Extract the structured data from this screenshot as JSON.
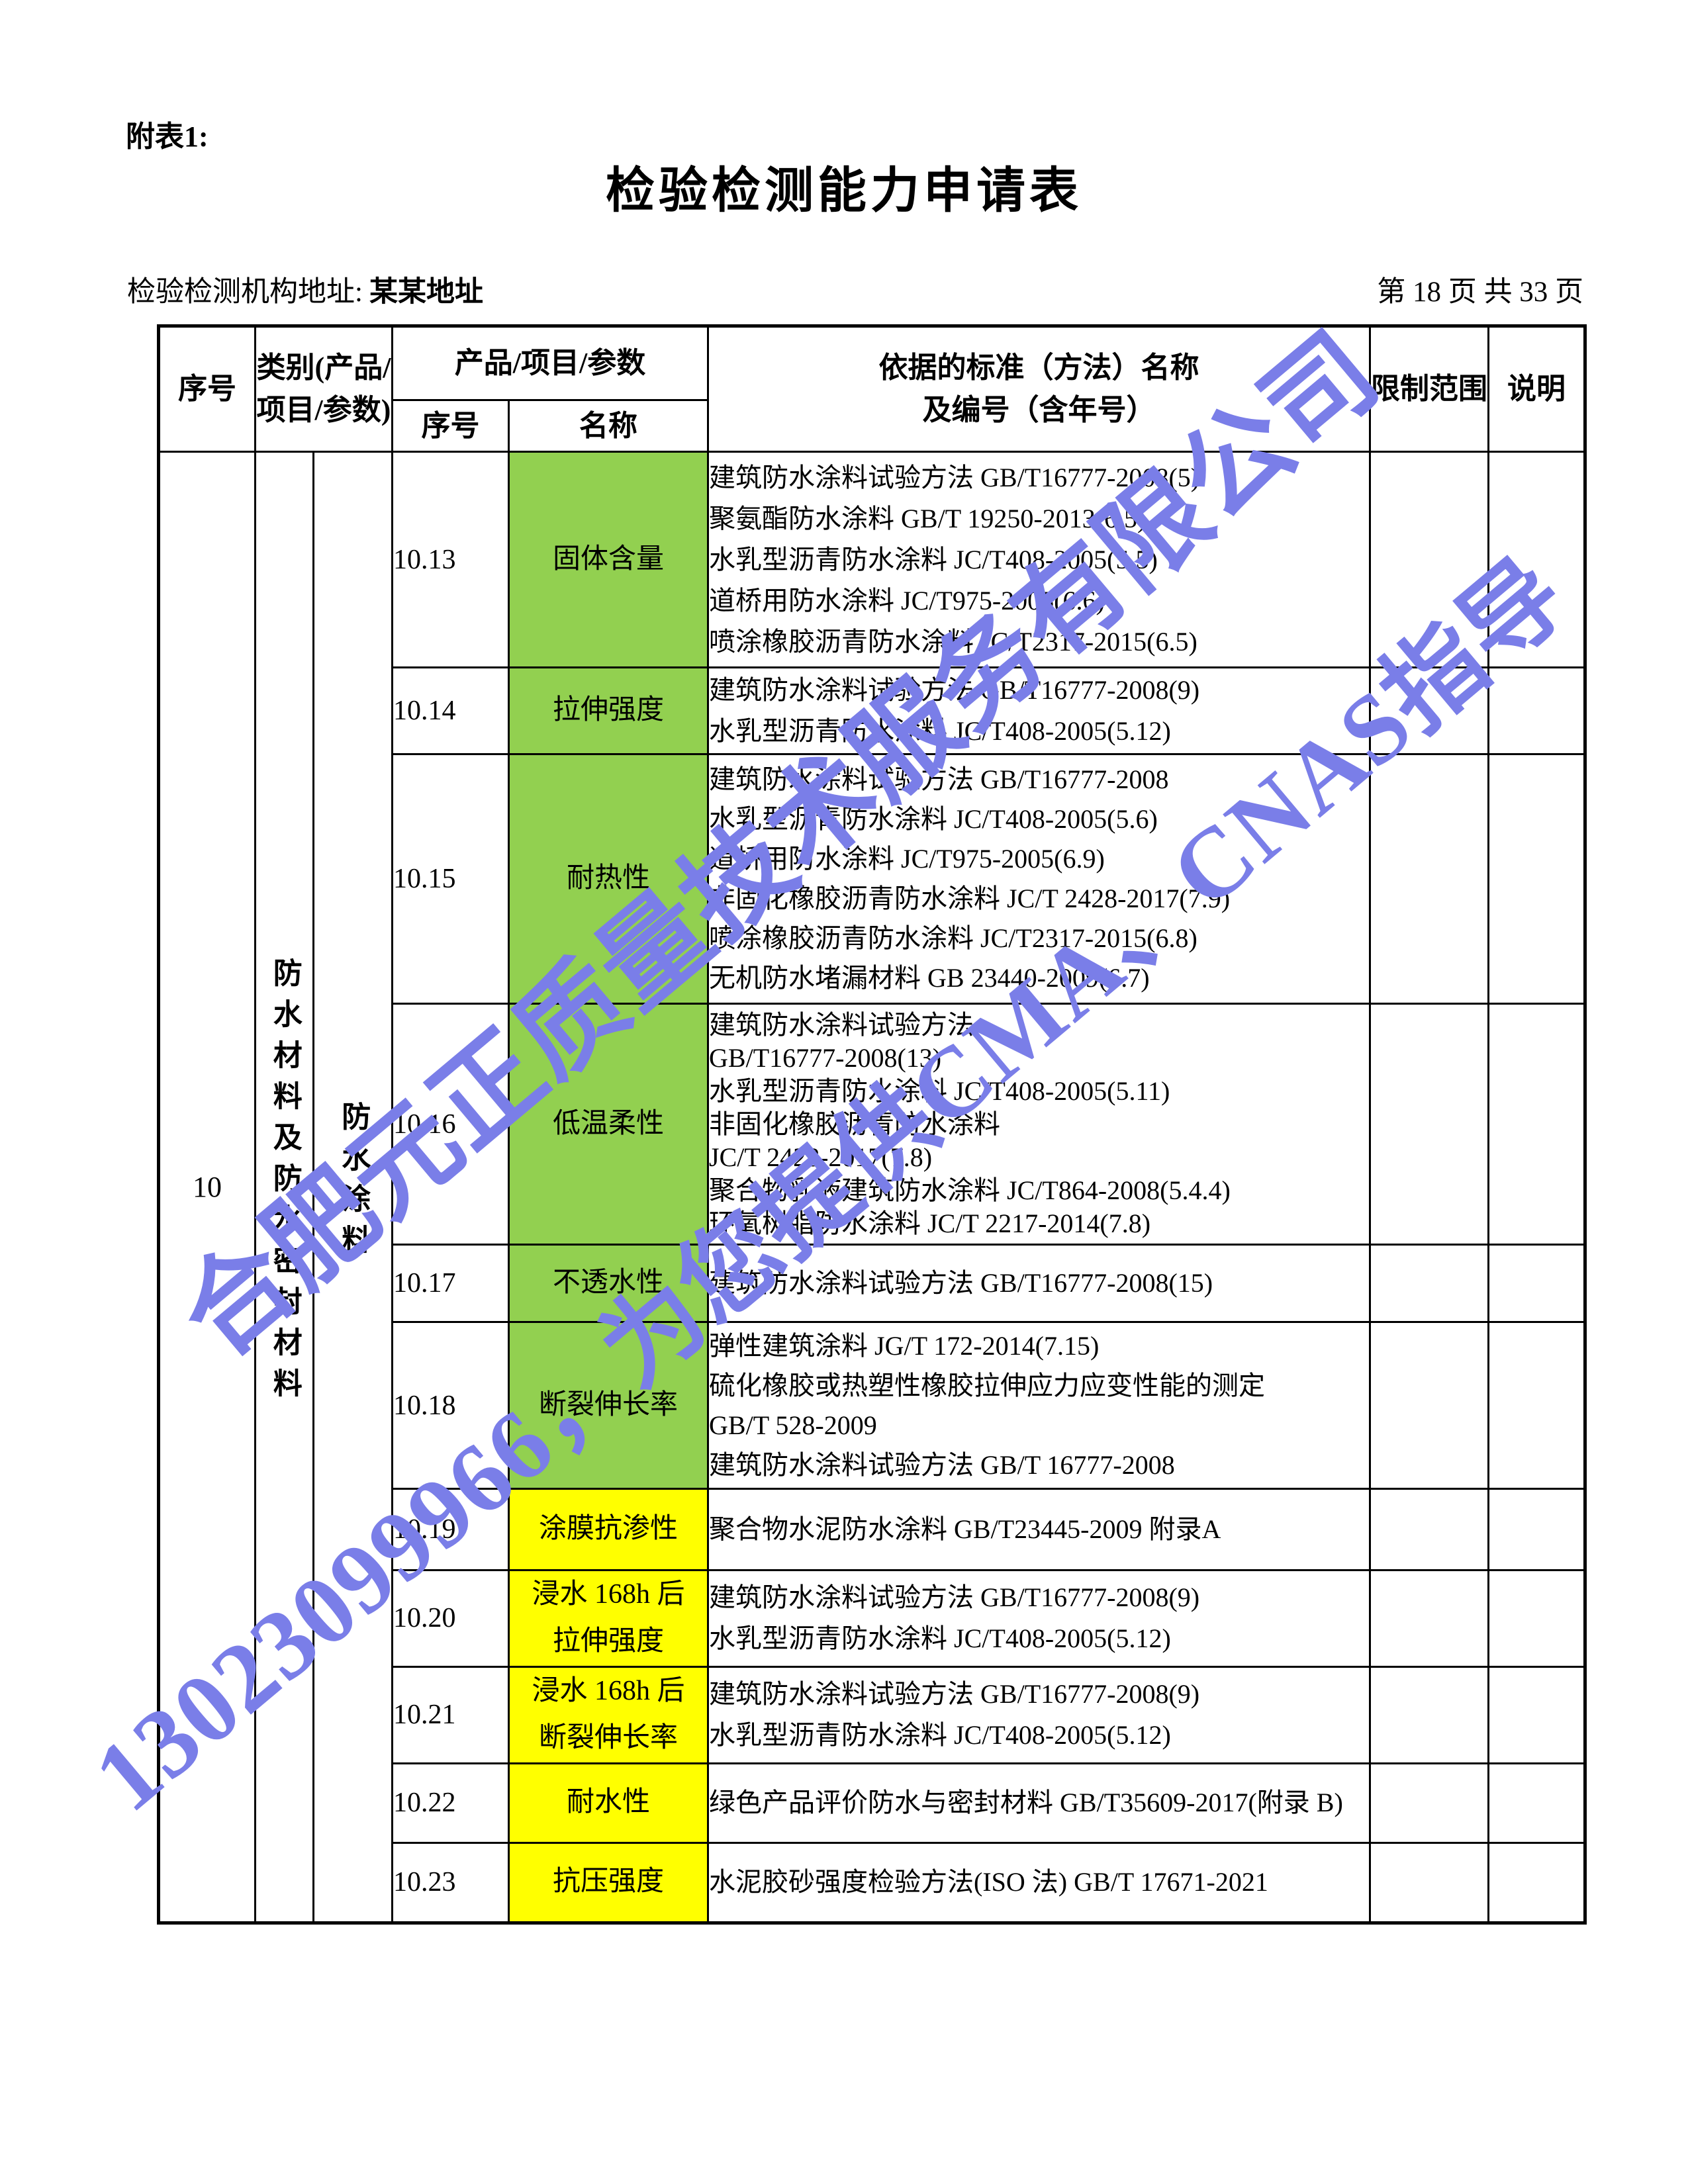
{
  "page": {
    "annex_label": "附表1:",
    "title": "检验检测能力申请表",
    "address_label": "检验检测机构地址:",
    "address_value": "某某地址",
    "page_info": "第 18 页 共 33 页"
  },
  "table": {
    "headers": {
      "col_seq": "序号",
      "col_category": "类别(产品/项目/参数)",
      "col_product": "产品/项目/参数",
      "col_sub_seq": "序号",
      "col_sub_name": "名称",
      "col_standard": "依据的标准（方法）名称\n及编号（含年号）",
      "col_limit": "限制范围",
      "col_note": "说明"
    },
    "group": {
      "seq": "10",
      "category": "防水材料及防水密封材料",
      "subcategory": "防水涂料"
    },
    "colors": {
      "green": "#92d050",
      "yellow": "#ffff00"
    },
    "rows": [
      {
        "seq": "10.13",
        "name": "固体含量",
        "color": "green",
        "standards": [
          "建筑防水涂料试验方法 GB/T16777-2008(5)",
          "聚氨酯防水涂料 GB/T 19250-2013(6.5)",
          "水乳型沥青防水涂料 JC/T408-2005(5.5)",
          "道桥用防水涂料 JC/T975-2005(6.6)",
          "喷涂橡胶沥青防水涂料 JC/T2317-2015(6.5)"
        ],
        "limit": "",
        "note": ""
      },
      {
        "seq": "10.14",
        "name": "拉伸强度",
        "color": "green",
        "standards": [
          "建筑防水涂料试验方法 GB/T16777-2008(9)",
          "水乳型沥青防水涂料 JC/T408-2005(5.12)"
        ],
        "limit": "",
        "note": ""
      },
      {
        "seq": "10.15",
        "name": "耐热性",
        "color": "green",
        "standards": [
          "建筑防水涂料试验方法 GB/T16777-2008",
          "水乳型沥青防水涂料 JC/T408-2005(5.6)",
          "道桥用防水涂料 JC/T975-2005(6.9)",
          "非固化橡胶沥青防水涂料 JC/T 2428-2017(7.9)",
          "喷涂橡胶沥青防水涂料 JC/T2317-2015(6.8)",
          "无机防水堵漏材料 GB 23440-2009(6.7)"
        ],
        "limit": "",
        "note": ""
      },
      {
        "seq": "10.16",
        "name": "低温柔性",
        "color": "green",
        "standards": [
          "建筑防水涂料试验方法",
          "GB/T16777-2008(13)",
          "水乳型沥青防水涂料 JC/T408-2005(5.11)",
          "非固化橡胶沥青防水涂料",
          "JC/T 2428-2017(7.8)",
          "聚合物乳液建筑防水涂料 JC/T864-2008(5.4.4)",
          "环氧树脂防水涂料 JC/T 2217-2014(7.8)"
        ],
        "limit": "",
        "note": ""
      },
      {
        "seq": "10.17",
        "name": "不透水性",
        "color": "green",
        "standards": [
          "建筑防水涂料试验方法 GB/T16777-2008(15)"
        ],
        "limit": "",
        "note": ""
      },
      {
        "seq": "10.18",
        "name": "断裂伸长率",
        "color": "green",
        "standards": [
          "弹性建筑涂料 JG/T 172-2014(7.15)",
          "硫化橡胶或热塑性橡胶拉伸应力应变性能的测定",
          "GB/T 528-2009",
          "建筑防水涂料试验方法 GB/T 16777-2008"
        ],
        "limit": "",
        "note": ""
      },
      {
        "seq": "10.19",
        "name": "涂膜抗渗性",
        "color": "yellow",
        "standards": [
          "聚合物水泥防水涂料 GB/T23445-2009 附录A"
        ],
        "limit": "",
        "note": ""
      },
      {
        "seq": "10.20",
        "name": "浸水 168h 后\n拉伸强度",
        "color": "yellow",
        "standards": [
          "建筑防水涂料试验方法 GB/T16777-2008(9)",
          "水乳型沥青防水涂料 JC/T408-2005(5.12)"
        ],
        "limit": "",
        "note": ""
      },
      {
        "seq": "10.21",
        "name": "浸水 168h 后\n断裂伸长率",
        "color": "yellow",
        "standards": [
          "建筑防水涂料试验方法 GB/T16777-2008(9)",
          "水乳型沥青防水涂料 JC/T408-2005(5.12)"
        ],
        "limit": "",
        "note": ""
      },
      {
        "seq": "10.22",
        "name": "耐水性",
        "color": "yellow",
        "standards": [
          "绿色产品评价防水与密封材料 GB/T35609-2017(附录 B)"
        ],
        "limit": "",
        "note": ""
      },
      {
        "seq": "10.23",
        "name": "抗压强度",
        "color": "yellow",
        "standards": [
          "水泥胶砂强度检验方法(ISO 法) GB/T 17671-2021"
        ],
        "limit": "",
        "note": ""
      }
    ]
  },
  "watermark": {
    "line1": "合肥元正质量技术服务有限公司",
    "line2": "13023099966，为您提供CMA、CNAS指导",
    "color": "#7a7ee8"
  }
}
